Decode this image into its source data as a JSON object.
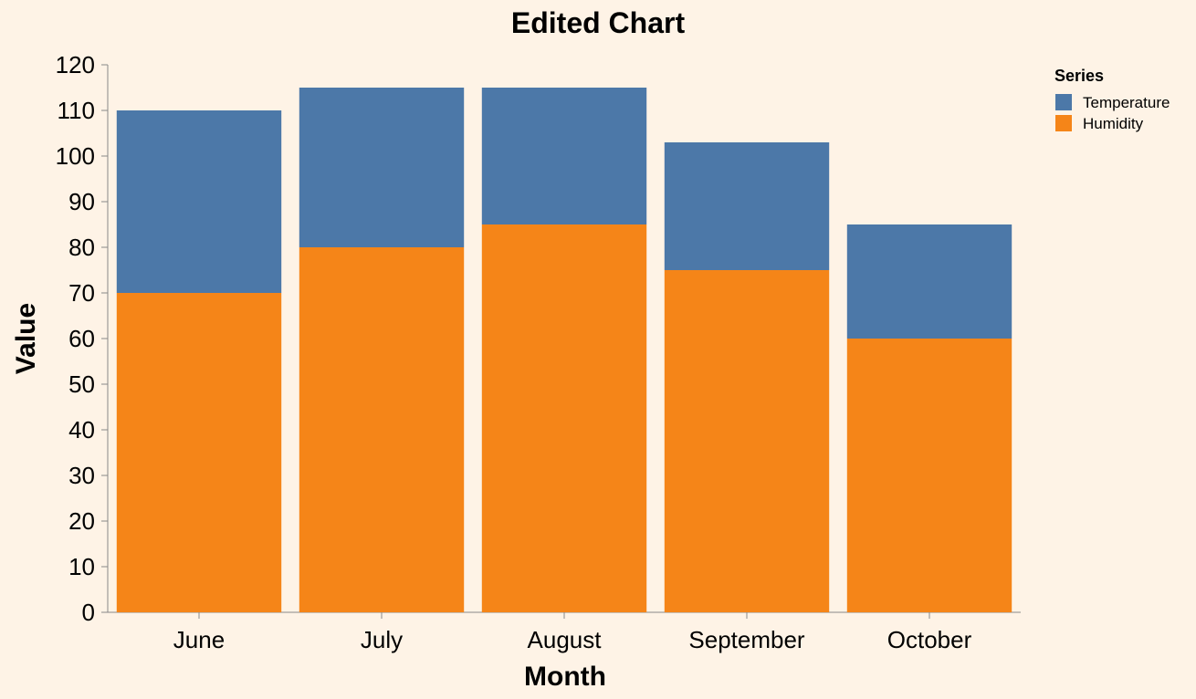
{
  "chart_data": {
    "type": "bar",
    "stacked": true,
    "title": "Edited Chart",
    "xlabel": "Month",
    "ylabel": "Value",
    "categories": [
      "June",
      "July",
      "August",
      "September",
      "October"
    ],
    "series": [
      {
        "name": "Humidity",
        "color": "#f58518",
        "values": [
          70,
          80,
          85,
          75,
          60
        ]
      },
      {
        "name": "Temperature",
        "color": "#4c78a8",
        "values": [
          40,
          35,
          30,
          28,
          25
        ]
      }
    ],
    "ylim": [
      0,
      120
    ],
    "yticks": [
      0,
      10,
      20,
      30,
      40,
      50,
      60,
      70,
      80,
      90,
      100,
      110,
      120
    ],
    "grid": false,
    "legend": {
      "title": "Series",
      "placement": "top-right",
      "entries": [
        {
          "label": "Temperature",
          "color": "#4c78a8"
        },
        {
          "label": "Humidity",
          "color": "#f58518"
        }
      ]
    }
  }
}
